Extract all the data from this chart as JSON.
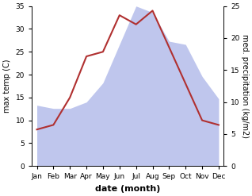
{
  "months": [
    "Jan",
    "Feb",
    "Mar",
    "Apr",
    "May",
    "Jun",
    "Jul",
    "Aug",
    "Sep",
    "Oct",
    "Nov",
    "Dec"
  ],
  "temp_max": [
    8,
    9,
    15,
    24,
    25,
    33,
    31,
    34,
    26,
    18,
    10,
    9
  ],
  "precip_kg": [
    9.5,
    9,
    9,
    10,
    13,
    19,
    25,
    24,
    19.5,
    19,
    14,
    10.5
  ],
  "temp_ylim": [
    0,
    35
  ],
  "precip_ylim": [
    0,
    25
  ],
  "temp_color": "#b03030",
  "precip_fill_color": "#aab4e8",
  "precip_fill_alpha": 0.75,
  "ylabel_left": "max temp (C)",
  "ylabel_right": "med. precipitation (kg/m2)",
  "xlabel": "date (month)",
  "bg_color": "#ffffff",
  "left_yticks": [
    0,
    5,
    10,
    15,
    20,
    25,
    30,
    35
  ],
  "right_yticks": [
    0,
    5,
    10,
    15,
    20,
    25
  ],
  "tick_fontsize": 6.5,
  "label_fontsize": 7,
  "xlabel_fontsize": 8
}
